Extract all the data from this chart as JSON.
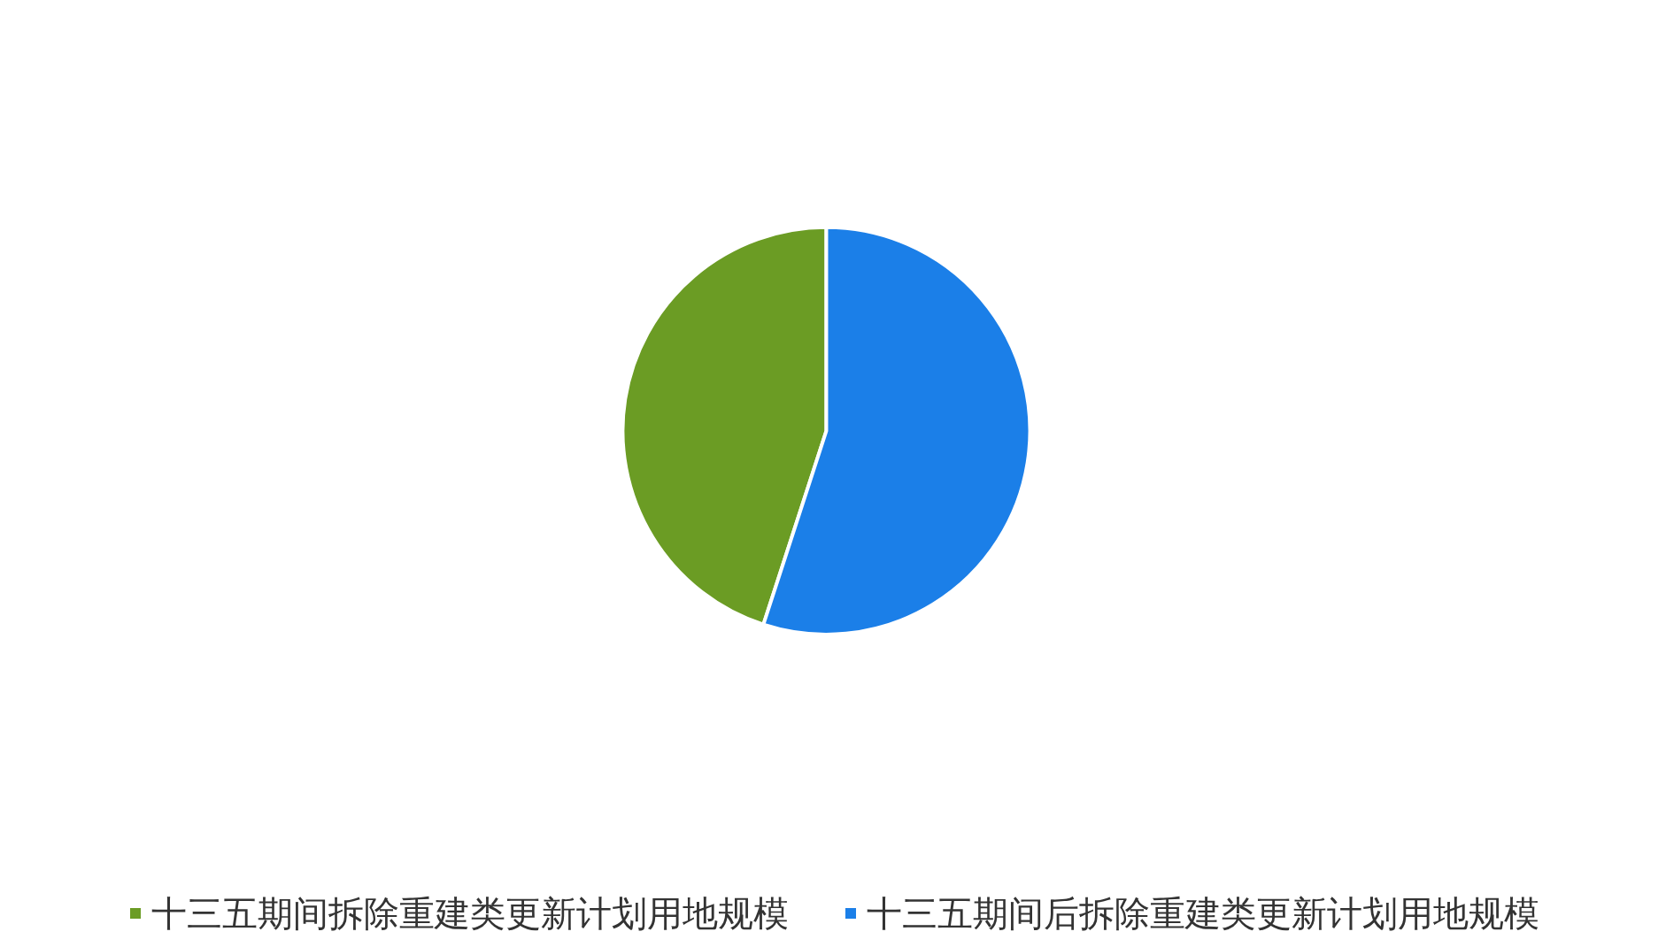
{
  "chart_data": {
    "type": "pie",
    "categories": [
      "十三五期间拆除重建类更新计划用地规模",
      "十三五期间后拆除重建类更新计划用地规模"
    ],
    "values": [
      45,
      55
    ],
    "colors": [
      "#6b9c24",
      "#1b7fe8"
    ],
    "legend": "bottom"
  }
}
